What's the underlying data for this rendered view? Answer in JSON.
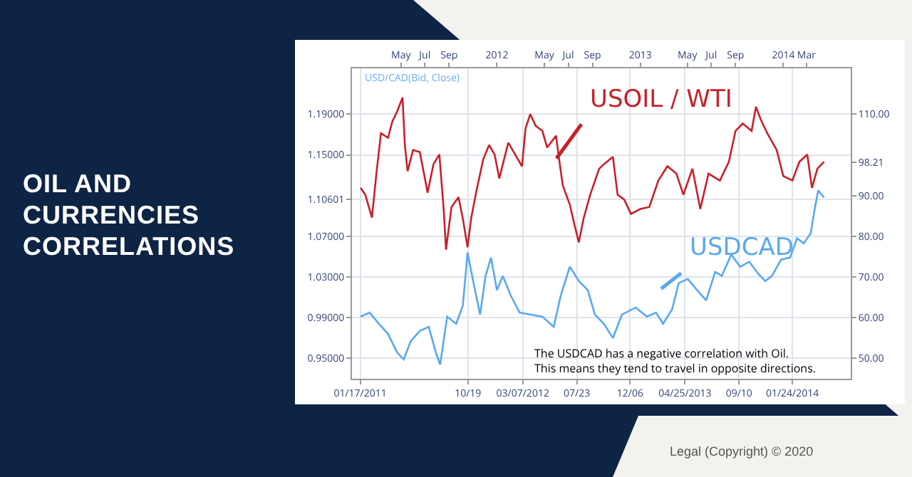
{
  "chart_data": {
    "type": "line",
    "title": "OIL AND CURRENCIES CORRELATIONS",
    "series": [
      {
        "name": "USOIL / WTI",
        "color": "#c8202a",
        "axis": "y2",
        "x": [
          "2011-01-18",
          "2011-01-30",
          "2011-02-16",
          "2011-02-28",
          "2011-03-11",
          "2011-03-29",
          "2011-04-09",
          "2011-04-21",
          "2011-05-05",
          "2011-05-11",
          "2011-05-18",
          "2011-06-01",
          "2011-06-18",
          "2011-06-30",
          "2011-07-08",
          "2011-07-23",
          "2011-08-07",
          "2011-08-18",
          "2011-08-24",
          "2011-09-07",
          "2011-09-25",
          "2011-10-06",
          "2011-10-18",
          "2011-10-27",
          "2011-11-10",
          "2011-11-27",
          "2011-12-12",
          "2011-12-26",
          "2012-01-07",
          "2012-01-30",
          "2012-02-20",
          "2012-03-05",
          "2012-03-14",
          "2012-03-26",
          "2012-04-09",
          "2012-04-26",
          "2012-05-08",
          "2012-05-31",
          "2012-06-06",
          "2012-06-17",
          "2012-07-05",
          "2012-07-16",
          "2012-07-28",
          "2012-08-09",
          "2012-08-26",
          "2012-09-18",
          "2012-09-30",
          "2012-10-23",
          "2012-11-04",
          "2012-11-21",
          "2012-12-08",
          "2013-01-01",
          "2013-01-24",
          "2013-02-16",
          "2013-03-11",
          "2013-04-03",
          "2013-04-21",
          "2013-05-14",
          "2013-06-03",
          "2013-06-24",
          "2013-07-23",
          "2013-08-15",
          "2013-09-01",
          "2013-09-19",
          "2013-10-12",
          "2013-10-23",
          "2013-11-04",
          "2013-11-21",
          "2013-12-15",
          "2014-01-01",
          "2014-01-24",
          "2014-02-11",
          "2014-03-03",
          "2014-03-15",
          "2014-03-29",
          "2014-04-15"
        ],
        "values": [
          91.9,
          90.2,
          84.6,
          96.0,
          105.3,
          104.2,
          108.2,
          110.6,
          114.1,
          102.4,
          96.0,
          101.2,
          100.7,
          94.8,
          90.7,
          97.7,
          100.1,
          86.7,
          76.7,
          87.2,
          89.6,
          84.3,
          77.3,
          84.3,
          91.3,
          98.9,
          102.4,
          100.1,
          94.2,
          103.0,
          99.5,
          97.2,
          106.5,
          110.0,
          107.1,
          105.9,
          101.8,
          104.7,
          100.1,
          92.5,
          87.8,
          83.2,
          78.5,
          84.3,
          90.2,
          96.6,
          97.7,
          99.5,
          90.2,
          89.0,
          85.5,
          86.7,
          87.2,
          93.7,
          97.2,
          95.4,
          90.2,
          96.6,
          86.7,
          95.4,
          93.7,
          98.3,
          105.9,
          107.7,
          105.9,
          111.8,
          108.8,
          105.3,
          101.2,
          94.8,
          93.7,
          98.3,
          100.1,
          91.9,
          96.6,
          98.3
        ]
      },
      {
        "name": "USDCAD",
        "color": "#5aa8f0",
        "x": [
          "2011-01-18",
          "2011-02-10",
          "2011-03-06",
          "2011-03-29",
          "2011-04-21",
          "2011-05-08",
          "2011-05-26",
          "2011-06-18",
          "2011-07-11",
          "2011-07-29",
          "2011-08-09",
          "2011-08-27",
          "2011-09-19",
          "2011-10-06",
          "2011-10-18",
          "2011-11-04",
          "2011-11-19",
          "2011-12-03",
          "2011-12-17",
          "2012-01-01",
          "2012-01-16",
          "2012-02-05",
          "2012-02-28",
          "2012-03-28",
          "2012-04-26",
          "2012-05-25",
          "2012-06-12",
          "2012-07-05",
          "2012-07-28",
          "2012-08-20",
          "2012-09-07",
          "2012-09-30",
          "2012-10-23",
          "2012-11-15",
          "2012-12-20",
          "2013-01-18",
          "2013-02-10",
          "2013-02-28",
          "2013-03-23",
          "2013-04-09",
          "2013-05-02",
          "2013-05-26",
          "2013-06-18",
          "2013-07-11",
          "2013-07-28",
          "2013-08-21",
          "2013-09-13",
          "2013-10-06",
          "2013-10-29",
          "2013-11-16",
          "2013-12-03",
          "2013-12-26",
          "2014-01-18",
          "2014-02-05",
          "2014-02-22",
          "2014-03-12",
          "2014-03-23",
          "2014-03-31",
          "2014-04-15"
        ],
        "values": [
          0.991,
          0.995,
          0.984,
          0.974,
          0.956,
          0.949,
          0.967,
          0.977,
          0.981,
          0.956,
          0.944,
          0.991,
          0.984,
          1.002,
          1.054,
          1.021,
          0.993,
          1.031,
          1.049,
          1.017,
          1.031,
          1.012,
          0.995,
          0.993,
          0.991,
          0.981,
          1.012,
          1.04,
          1.026,
          1.017,
          0.993,
          0.984,
          0.97,
          0.993,
          1.0,
          0.991,
          0.995,
          0.984,
          0.998,
          1.024,
          1.028,
          1.017,
          1.007,
          1.035,
          1.031,
          1.052,
          1.04,
          1.045,
          1.033,
          1.026,
          1.031,
          1.047,
          1.049,
          1.068,
          1.063,
          1.073,
          1.099,
          1.115,
          1.108
        ]
      }
    ],
    "xlim": [
      "2010-12-27",
      "2014-06-22"
    ],
    "xticks": [
      {
        "value": "2011-01-17",
        "label": "01/17/2011"
      },
      {
        "value": "2011-10-19",
        "label": "10/19"
      },
      {
        "value": "2012-03-07",
        "label": "03/07/2012"
      },
      {
        "value": "2012-07-23",
        "label": "07/23"
      },
      {
        "value": "2012-12-06",
        "label": "12/06"
      },
      {
        "value": "2013-04-25",
        "label": "04/25/2013"
      },
      {
        "value": "2013-09-10",
        "label": "09/10"
      },
      {
        "value": "2014-01-24",
        "label": "01/24/2014"
      }
    ],
    "x2lim": [
      "2010-12-27",
      "2014-06-22"
    ],
    "x2ticks": [
      {
        "value": "2011-05-01",
        "label": "May"
      },
      {
        "value": "2011-07-01",
        "label": "Jul"
      },
      {
        "value": "2011-09-01",
        "label": "Sep"
      },
      {
        "value": "2012-01-01",
        "label": "2012"
      },
      {
        "value": "2012-05-01",
        "label": "May"
      },
      {
        "value": "2012-07-01",
        "label": "Jul"
      },
      {
        "value": "2012-09-01",
        "label": "Sep"
      },
      {
        "value": "2013-01-01",
        "label": "2013"
      },
      {
        "value": "2013-05-01",
        "label": "May"
      },
      {
        "value": "2013-07-01",
        "label": "Jul"
      },
      {
        "value": "2013-09-01",
        "label": "Sep"
      },
      {
        "value": "2014-01-01",
        "label": "2014"
      },
      {
        "value": "2014-03-01",
        "label": "Mar"
      }
    ],
    "ylim": [
      0.93,
      1.235
    ],
    "yticks": [
      {
        "value": 0.95,
        "label": "0.95000"
      },
      {
        "value": 0.99,
        "label": "0.99000"
      },
      {
        "value": 1.03,
        "label": "1.03000"
      },
      {
        "value": 1.07,
        "label": "1.07000"
      },
      {
        "value": 1.10601,
        "label": "1.10601"
      },
      {
        "value": 1.15,
        "label": "1.15000"
      },
      {
        "value": 1.19,
        "label": "1.19000"
      }
    ],
    "y2lim": [
      45,
      121.25
    ],
    "y2ticks": [
      {
        "value": 50,
        "label": "50.00"
      },
      {
        "value": 60,
        "label": "60.00"
      },
      {
        "value": 70,
        "label": "70.00"
      },
      {
        "value": 80,
        "label": "80.00"
      },
      {
        "value": 90,
        "label": "90.00"
      },
      {
        "value": 98.21,
        "label": "98.21"
      },
      {
        "value": 110,
        "label": "110.00"
      }
    ],
    "grid": true,
    "marker": "none",
    "line_style": "solid",
    "annotations": [
      "USD/CAD(Bid, Close)",
      "The USDCAD has a negative correlation with Oil.\nThis means they tend to travel in opposite directions.",
      "Legal (Copyright) © 2020"
    ]
  }
}
